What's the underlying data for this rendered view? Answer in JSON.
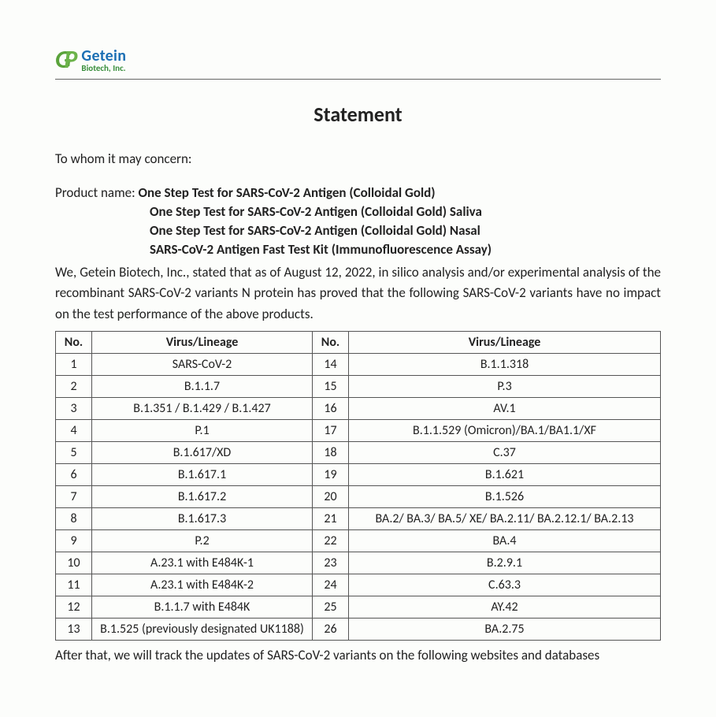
{
  "logo": {
    "company": "Getein",
    "subtitle": "Biotech, Inc."
  },
  "title": "Statement",
  "salutation": "To whom it may concern:",
  "product_label": "Product name: ",
  "products": [
    "One Step Test for SARS-CoV-2 Antigen (Colloidal Gold)",
    "One Step Test for SARS-CoV-2 Antigen (Colloidal Gold) Saliva",
    "One Step Test for SARS-CoV-2 Antigen (Colloidal Gold) Nasal",
    "SARS-CoV-2 Antigen Fast Test Kit (Immunofluorescence Assay)"
  ],
  "paragraph1": "We, Getein Biotech, Inc., stated that as of August 12, 2022, in silico analysis and/or experimental analysis of the recombinant SARS-CoV-2 variants N protein has proved that the following SARS-CoV-2 variants have no impact on the test performance of the above products.",
  "table": {
    "headers": {
      "no": "No.",
      "lineage": "Virus/Lineage"
    },
    "rows": [
      {
        "n1": "1",
        "v1": "SARS-CoV-2",
        "n2": "14",
        "v2": "B.1.1.318"
      },
      {
        "n1": "2",
        "v1": "B.1.1.7",
        "n2": "15",
        "v2": "P.3"
      },
      {
        "n1": "3",
        "v1": "B.1.351 / B.1.429 / B.1.427",
        "n2": "16",
        "v2": "AV.1"
      },
      {
        "n1": "4",
        "v1": "P.1",
        "n2": "17",
        "v2": "B.1.1.529 (Omicron)/BA.1/BA1.1/XF"
      },
      {
        "n1": "5",
        "v1": "B.1.617/XD",
        "n2": "18",
        "v2": "C.37"
      },
      {
        "n1": "6",
        "v1": "B.1.617.1",
        "n2": "19",
        "v2": "B.1.621"
      },
      {
        "n1": "7",
        "v1": "B.1.617.2",
        "n2": "20",
        "v2": "B.1.526"
      },
      {
        "n1": "8",
        "v1": "B.1.617.3",
        "n2": "21",
        "v2": "BA.2/ BA.3/ BA.5/ XE/ BA.2.11/ BA.2.12.1/ BA.2.13"
      },
      {
        "n1": "9",
        "v1": "P.2",
        "n2": "22",
        "v2": "BA.4"
      },
      {
        "n1": "10",
        "v1": "A.23.1 with E484K-1",
        "n2": "23",
        "v2": "B.2.9.1"
      },
      {
        "n1": "11",
        "v1": "A.23.1 with E484K-2",
        "n2": "24",
        "v2": "C.63.3"
      },
      {
        "n1": "12",
        "v1": "B.1.1.7 with E484K",
        "n2": "25",
        "v2": "AY.42"
      },
      {
        "n1": "13",
        "v1": "B.1.525 (previously designated UK1188)",
        "n2": "26",
        "v2": "BA.2.75"
      }
    ]
  },
  "paragraph2": "After that, we will track the updates of SARS-CoV-2 variants on the following websites and databases",
  "colors": {
    "logo_blue": "#1b6fb4",
    "logo_green": "#3a8f3d",
    "text": "#222222",
    "border": "#555555",
    "background": "#fcfdfb"
  },
  "typography": {
    "title_fontsize": 26,
    "body_fontsize": 17,
    "table_fontsize": 16,
    "font_family": "Calibri"
  }
}
